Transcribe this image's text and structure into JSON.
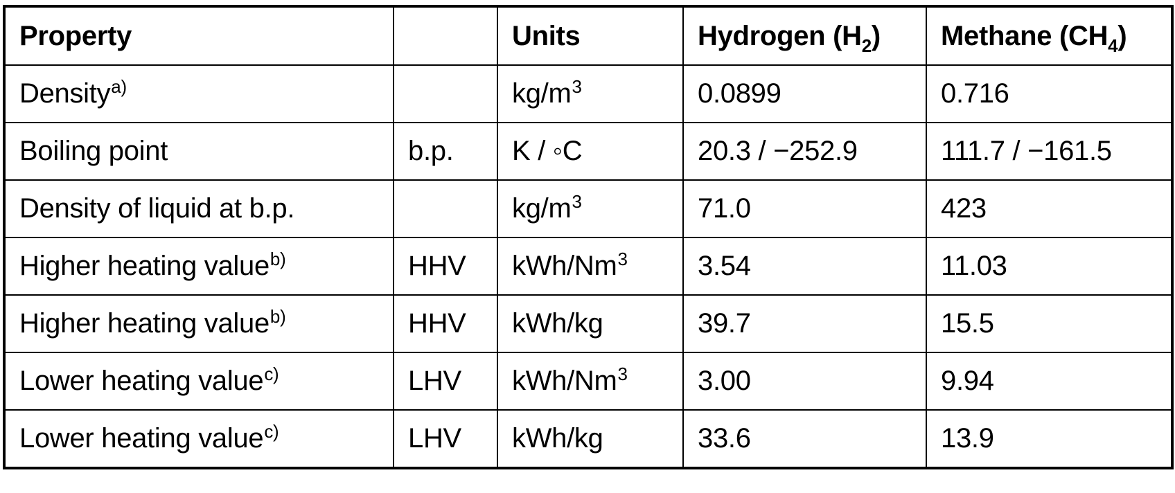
{
  "table": {
    "headers": {
      "property": "Property",
      "abbr": "",
      "units": "Units",
      "h2_main": "Hydrogen (H",
      "h2_sub": "2",
      "h2_close": ")",
      "ch4_main": "Methane (CH",
      "ch4_sub": "4",
      "ch4_close": ")"
    },
    "rows": [
      {
        "property": "Density",
        "note": "a)",
        "abbr": "",
        "unit": "kg/m",
        "unit_sup": "3",
        "hydrogen": "0.0899",
        "methane": "0.716"
      },
      {
        "property": "Boiling point",
        "note": "",
        "abbr": "b.p.",
        "unit": "K / ◦C",
        "unit_sup": "",
        "hydrogen": "20.3 / −252.9",
        "methane": "111.7 / −161.5"
      },
      {
        "property": "Density of liquid at b.p.",
        "note": "",
        "abbr": "",
        "unit": "kg/m",
        "unit_sup": "3",
        "hydrogen": "71.0",
        "methane": "423"
      },
      {
        "property": "Higher heating value",
        "note": "b)",
        "abbr": "HHV",
        "unit": "kWh/Nm",
        "unit_sup": "3",
        "hydrogen": "3.54",
        "methane": "11.03"
      },
      {
        "property": "Higher heating value",
        "note": "b)",
        "abbr": "HHV",
        "unit": "kWh/kg",
        "unit_sup": "",
        "hydrogen": "39.7",
        "methane": "15.5"
      },
      {
        "property": "Lower heating value",
        "note": "c)",
        "abbr": "LHV",
        "unit": "kWh/Nm",
        "unit_sup": "3",
        "hydrogen": "3.00",
        "methane": "9.94"
      },
      {
        "property": "Lower heating value",
        "note": "c)",
        "abbr": "LHV",
        "unit": "kWh/kg",
        "unit_sup": "",
        "hydrogen": "33.6",
        "methane": "13.9"
      }
    ]
  }
}
